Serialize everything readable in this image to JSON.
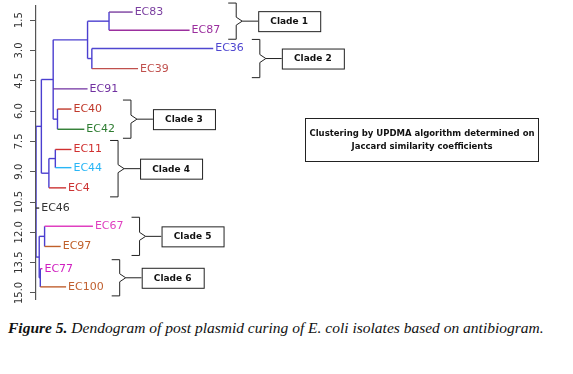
{
  "chart_data": {
    "type": "dendrogram",
    "color": "#4b3fd0",
    "tick_labels": "y",
    "grid": false,
    "xlim": [
      0,
      500
    ],
    "ylim": [
      0.8,
      15.3
    ],
    "yticks": [
      1.5,
      {
        "value": 3,
        "label": "3.0"
      },
      4.5,
      {
        "value": 6,
        "label": "6.0"
      },
      7.5,
      {
        "value": 9,
        "label": "9.0"
      },
      10.5,
      {
        "value": 12,
        "label": "12.0"
      },
      13.5,
      {
        "value": 15,
        "label": "15.0"
      }
    ],
    "tree": {
      "distance": 0,
      "children": [
        {
          "distance": 5,
          "children": [
            {
              "distance": 16,
              "children": [
                {
                  "distance": 48,
                  "children": [
                    {
                      "distance": 68,
                      "children": [
                        {
                          "label": "EC83",
                          "color": "#7b3fa0",
                          "position": 1.1,
                          "distance": 90
                        },
                        {
                          "label": "EC87",
                          "color": "#9b2f9e",
                          "position": 2.0,
                          "distance": 143
                        }
                      ]
                    },
                    {
                      "distance": 52,
                      "children": [
                        {
                          "label": "EC36",
                          "color": "#4f47d0",
                          "position": 2.9,
                          "distance": 165
                        },
                        {
                          "label": "EC39",
                          "color": "#c0504d",
                          "position": 3.9,
                          "distance": 95
                        }
                      ]
                    }
                  ]
                },
                {
                  "label": "EC91",
                  "color": "#7030a0",
                  "position": 4.9,
                  "distance": 48
                },
                {
                  "distance": 20,
                  "children": [
                    {
                      "label": "EC40",
                      "color": "#c0392b",
                      "position": 5.9,
                      "distance": 33
                    },
                    {
                      "label": "EC42",
                      "color": "#2e7d32",
                      "position": 6.9,
                      "distance": 45
                    }
                  ]
                }
              ]
            },
            {
              "distance": 12,
              "children": [
                {
                  "distance": 18,
                  "children": [
                    {
                      "label": "EC11",
                      "color": "#d03030",
                      "position": 7.9,
                      "distance": 33
                    },
                    {
                      "label": "EC44",
                      "color": "#29b6f6",
                      "position": 8.8,
                      "distance": 33
                    }
                  ]
                },
                {
                  "label": "EC4",
                  "color": "#cc3333",
                  "position": 9.8,
                  "distance": 28
                }
              ]
            }
          ]
        },
        {
          "label": "EC46",
          "color": "#333333",
          "position": 10.8,
          "distance": 3
        },
        {
          "distance": 3,
          "children": [
            {
              "distance": 8,
              "children": [
                {
                  "label": "EC67",
                  "color": "#e040c0",
                  "position": 11.7,
                  "distance": 53
                },
                {
                  "label": "EC97",
                  "color": "#c0602a",
                  "position": 12.7,
                  "distance": 23
                }
              ]
            },
            {
              "distance": 4,
              "children": [
                {
                  "label": "EC77",
                  "color": "#d020c0",
                  "position": 13.8,
                  "distance": 6
                },
                {
                  "label": "EC100",
                  "color": "#c06030",
                  "position": 14.7,
                  "distance": 28
                }
              ]
            }
          ]
        }
      ]
    },
    "clades": [
      {
        "text": "Clade 1",
        "from": "EC83",
        "to": "EC87"
      },
      {
        "text": "Clade 2",
        "from": "EC36",
        "to": "EC39"
      },
      {
        "text": "Clade 3",
        "from": "EC40",
        "to": "EC42"
      },
      {
        "text": "Clade 4",
        "from": "EC11",
        "to": "EC4"
      },
      {
        "text": "Clade 5",
        "from": "EC67",
        "to": "EC97"
      },
      {
        "text": "Clade 6",
        "from": "EC77",
        "to": "EC100"
      }
    ],
    "note": [
      "Clustering by UPDMA algorithm determined on",
      "Jaccard similarity coefficients"
    ],
    "caption": {
      "label": "Figure 5.",
      "text": "Dendogram of post plasmid curing of E. coli isolates based on antibiogram."
    }
  }
}
